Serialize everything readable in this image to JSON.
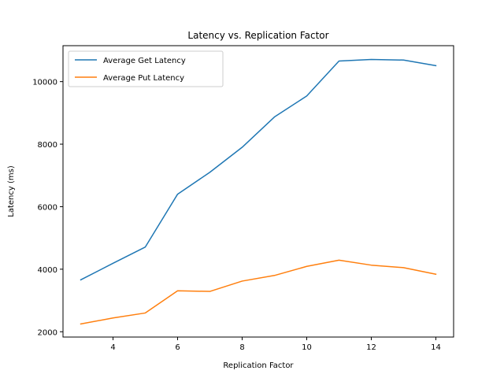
{
  "chart_data": {
    "type": "line",
    "title": "Latency vs. Replication Factor",
    "xlabel": "Replication Factor",
    "ylabel": "Latency (ms)",
    "x": [
      3,
      4,
      5,
      6,
      7,
      8,
      9,
      10,
      11,
      12,
      13,
      14
    ],
    "xlim": [
      2.45,
      14.55
    ],
    "ylim": [
      1830,
      11150
    ],
    "xticks": [
      4,
      6,
      8,
      10,
      12,
      14
    ],
    "yticks": [
      2000,
      4000,
      6000,
      8000,
      10000
    ],
    "grid": false,
    "legend_position": "top-left",
    "series": [
      {
        "name": "Average Get Latency",
        "color": "#1f77b4",
        "values": [
          3660,
          4190,
          4710,
          6400,
          7100,
          7900,
          8870,
          9540,
          10660,
          10710,
          10690,
          10510
        ]
      },
      {
        "name": "Average Put Latency",
        "color": "#ff7f0e",
        "values": [
          2250,
          2440,
          2600,
          3310,
          3290,
          3620,
          3800,
          4090,
          4290,
          4130,
          4050,
          3840
        ]
      }
    ]
  }
}
